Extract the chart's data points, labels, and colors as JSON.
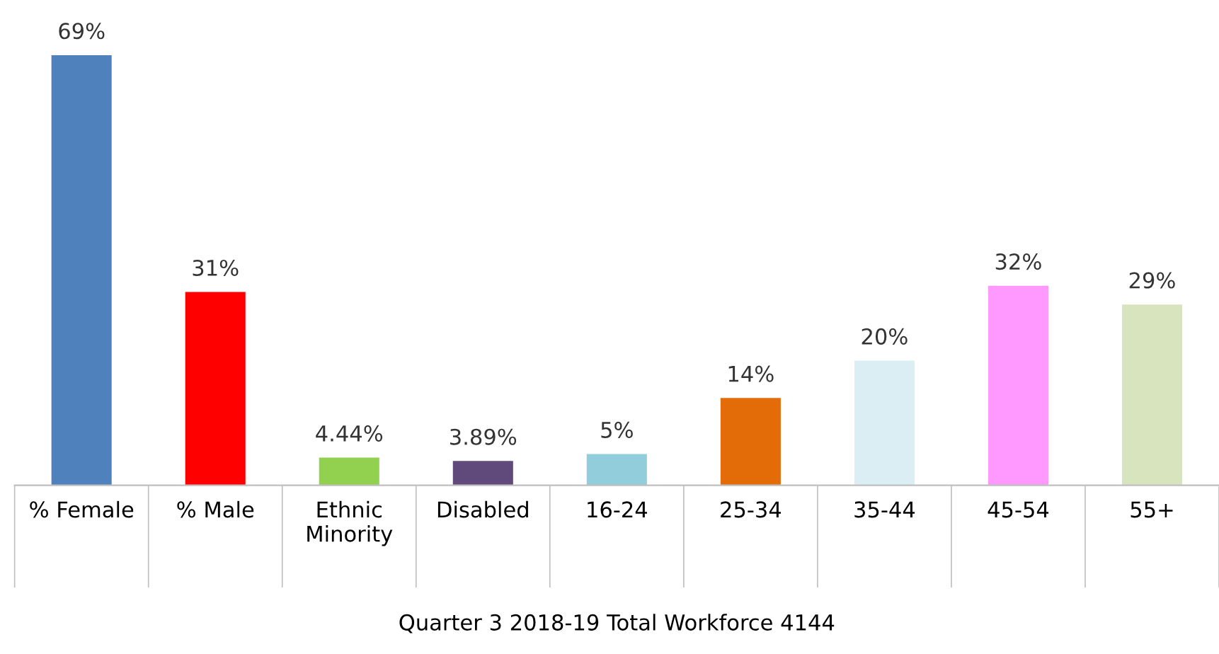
{
  "chart_data": {
    "type": "bar",
    "xlabel": "Quarter 3 2018-19 Total Workforce 4144",
    "categories": [
      "% Female",
      "% Male",
      "Ethnic\nMinority",
      "Disabled",
      "16-24",
      "25-34",
      "35-44",
      "45-54",
      "55+"
    ],
    "values": [
      69,
      31,
      4.44,
      3.89,
      5,
      14,
      20,
      32,
      29
    ],
    "colors": [
      "#4f81bd",
      "#ff0000",
      "#92d050",
      "#604a7b",
      "#92cddc",
      "#e36c09",
      "#dbeef4",
      "#ff99ff",
      "#d7e4bd"
    ],
    "value_labels": [
      "69%",
      "31%",
      "4.44%",
      "3.89%",
      "5%",
      "14%",
      "20%",
      "32%",
      "29%"
    ],
    "grid": false
  }
}
